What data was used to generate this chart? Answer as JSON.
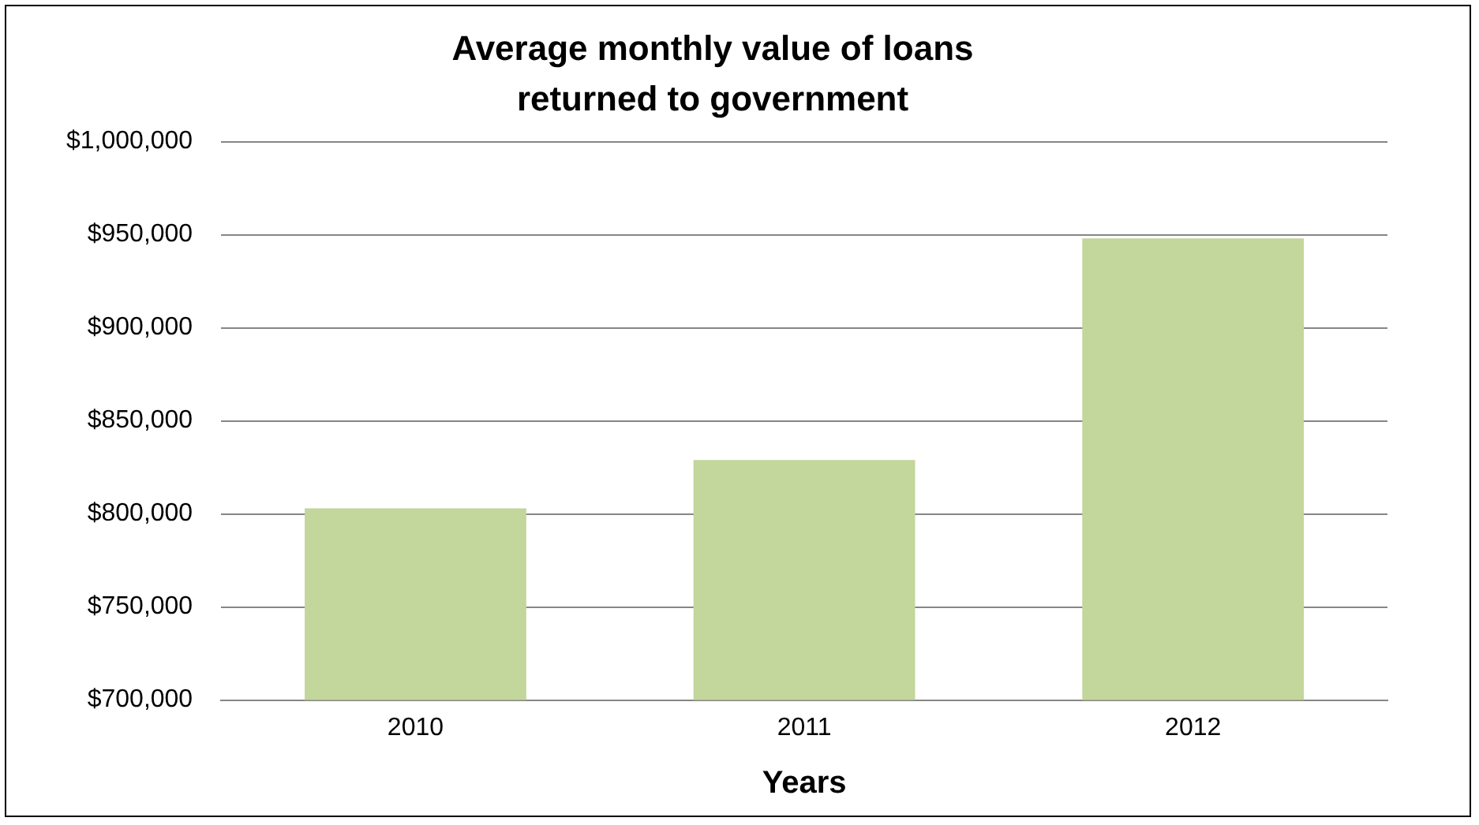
{
  "chart_data": {
    "type": "bar",
    "title": [
      "Average monthly value of loans",
      "returned to government"
    ],
    "xlabel": "Years",
    "categories": [
      "2010",
      "2011",
      "2012"
    ],
    "values": [
      803000,
      829000,
      948000
    ],
    "color": "#c3d69b",
    "ylim": [
      700000,
      1000000
    ],
    "yticks": [
      {
        "value": 700000,
        "label": "$700,000"
      },
      {
        "value": 750000,
        "label": "$750,000"
      },
      {
        "value": 800000,
        "label": "$800,000"
      },
      {
        "value": 850000,
        "label": "$850,000"
      },
      {
        "value": 900000,
        "label": "$900,000"
      },
      {
        "value": 950000,
        "label": "$950,000"
      },
      {
        "value": 1000000,
        "label": "$1,000,000"
      }
    ],
    "grid": "y",
    "legend": false
  }
}
